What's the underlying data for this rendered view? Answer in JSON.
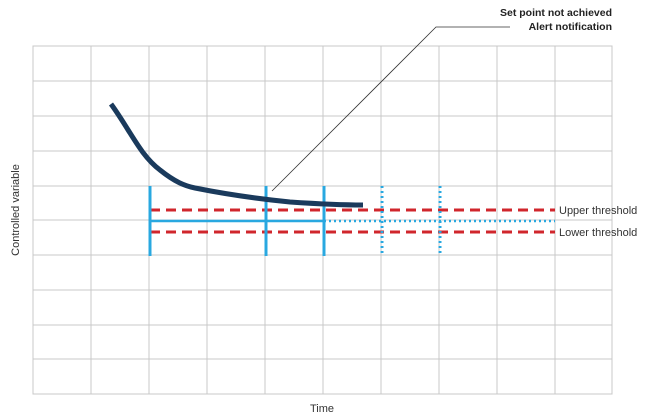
{
  "diagram": {
    "callout_line1": "Set point not achieved",
    "callout_line2": "Alert notification",
    "upper_threshold_label": "Upper threshold",
    "lower_threshold_label": "Lower threshold",
    "x_axis_label": "Time",
    "y_axis_label": "Controlled variable",
    "colors": {
      "grid": "#c8c8c8",
      "curve": "#1a3a5c",
      "threshold": "#d0262c",
      "setpoint": "#29a8e0",
      "callout_line": "#333333"
    }
  }
}
